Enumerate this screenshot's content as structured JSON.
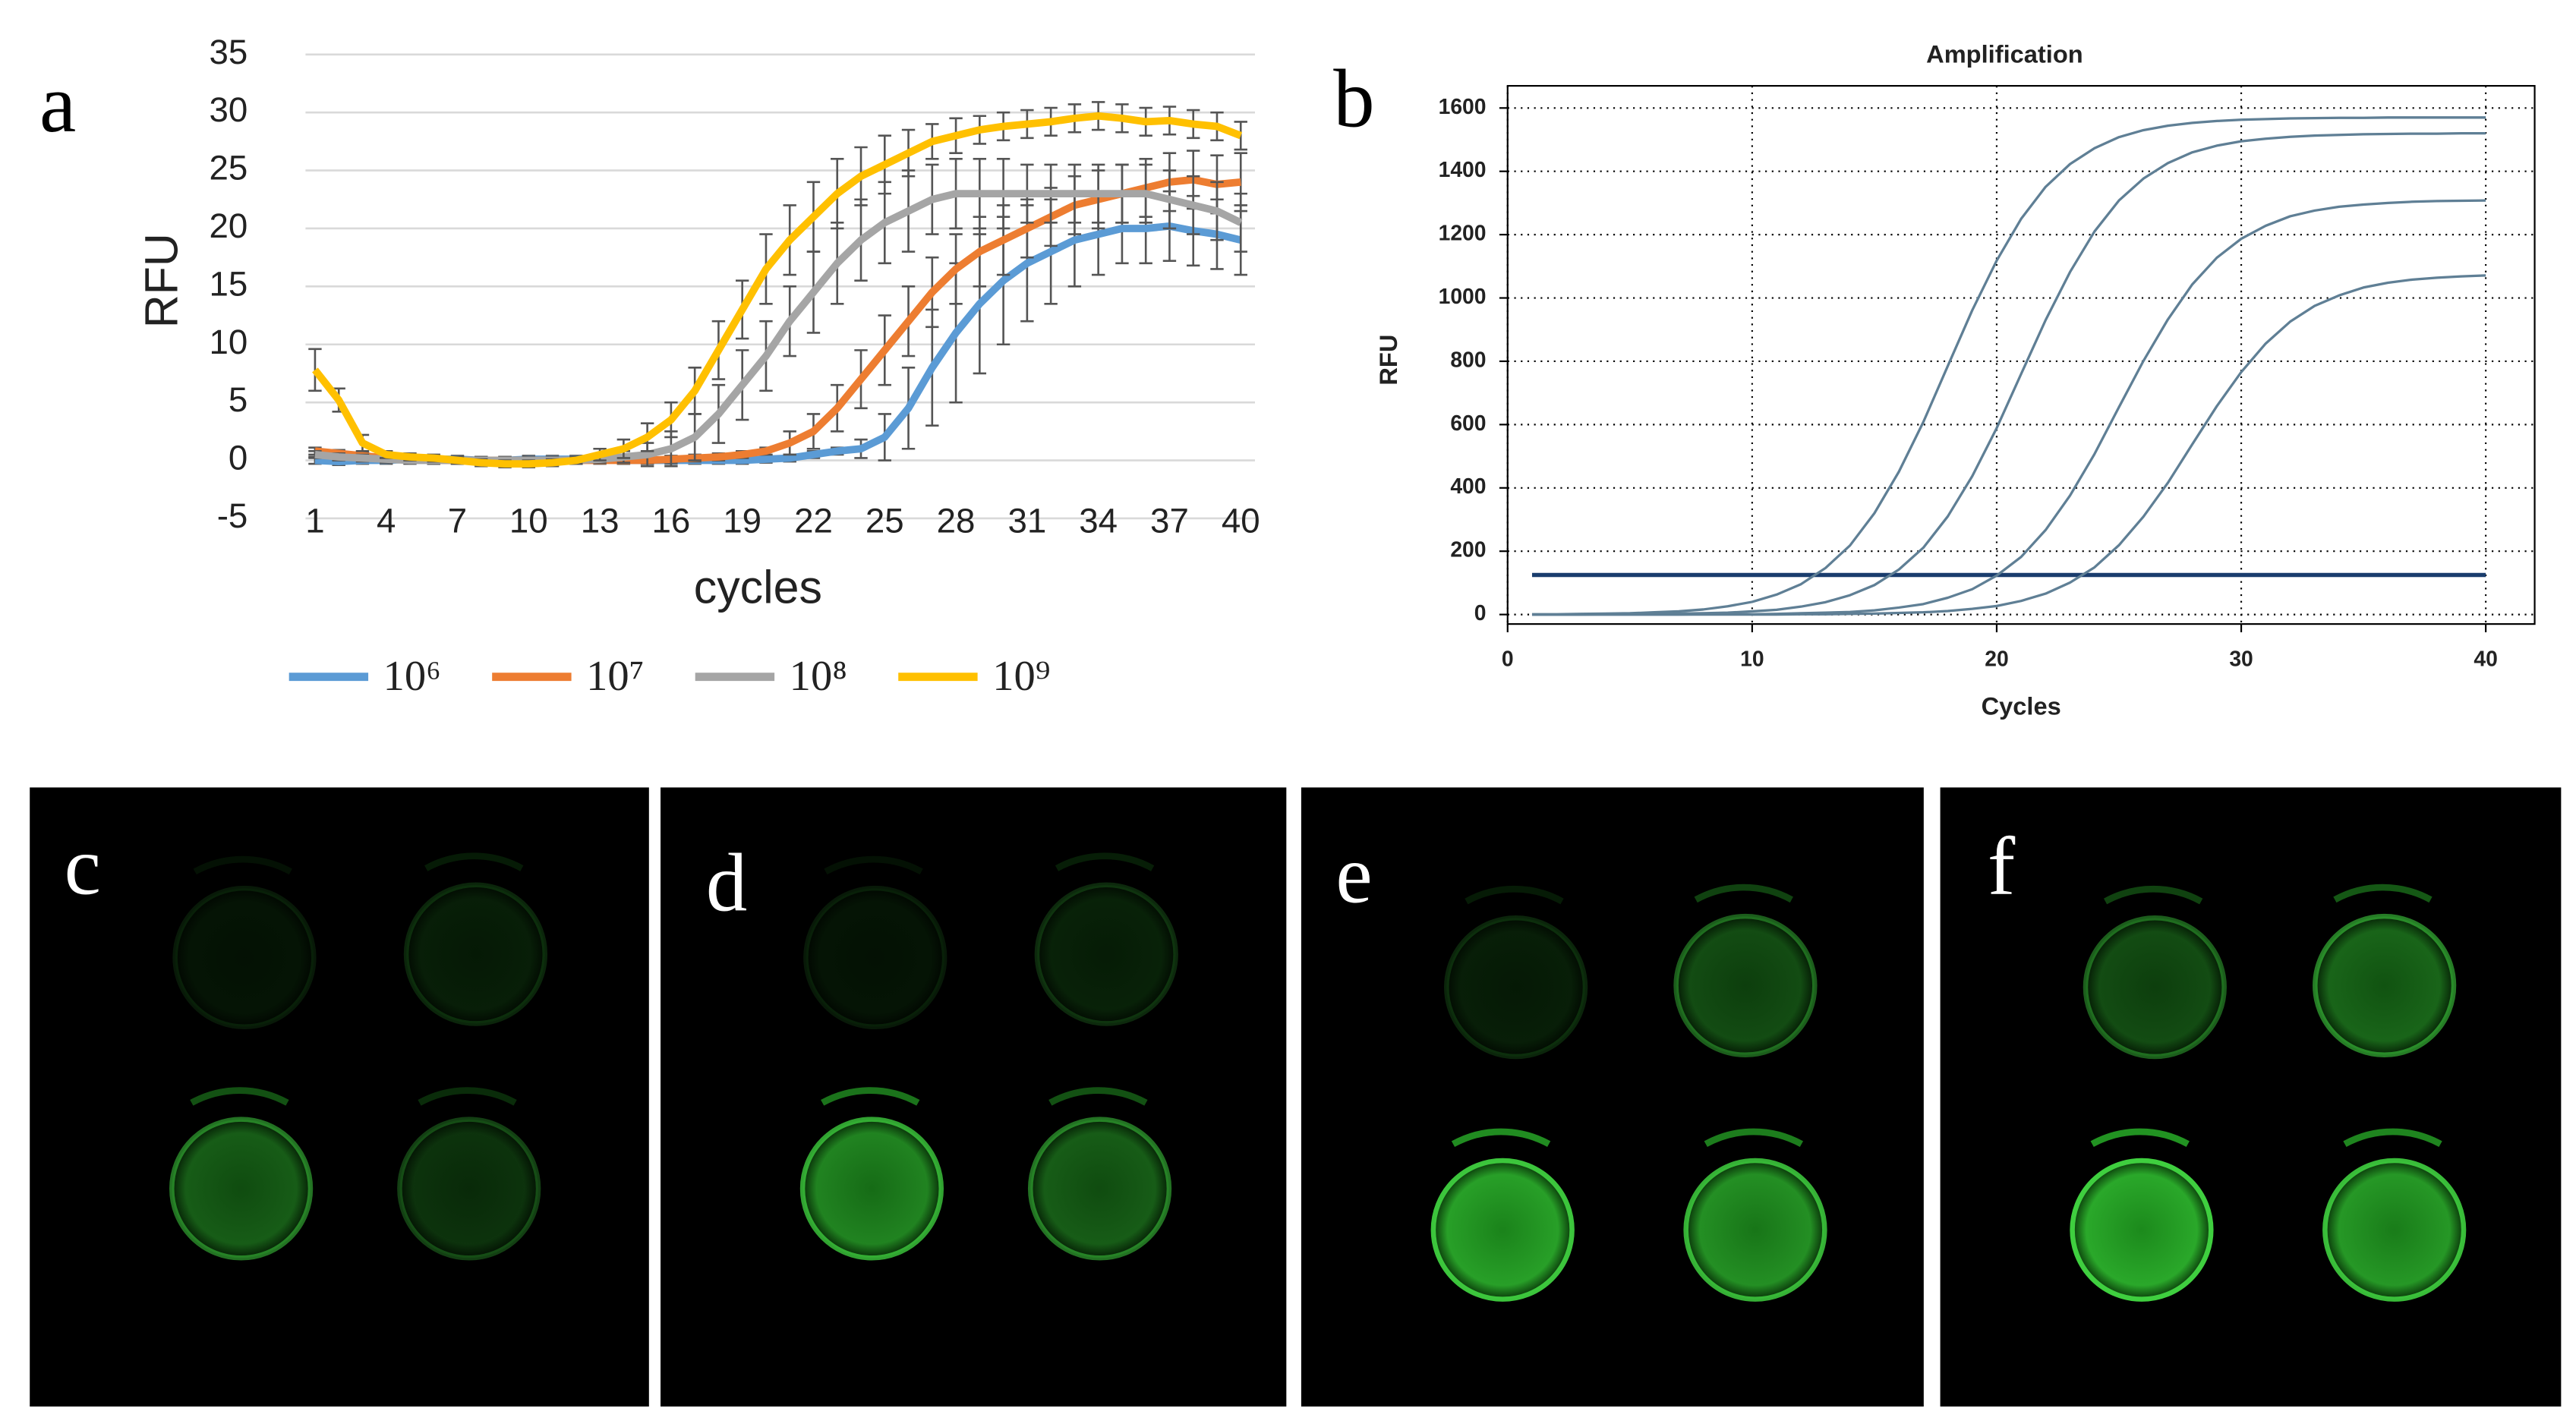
{
  "panel_labels": [
    "a",
    "b",
    "c",
    "d",
    "e",
    "f"
  ],
  "chart_data": [
    {
      "type": "line",
      "x_label": "cycles",
      "y_label": "RFU",
      "x": [
        1,
        2,
        3,
        4,
        5,
        6,
        7,
        8,
        9,
        10,
        11,
        12,
        13,
        14,
        15,
        16,
        17,
        18,
        19,
        20,
        21,
        22,
        23,
        24,
        25,
        26,
        27,
        28,
        29,
        30,
        31,
        32,
        33,
        34,
        35,
        36,
        37,
        38,
        39,
        40
      ],
      "xlim": [
        0.6,
        40.6
      ],
      "xticks": [
        1,
        4,
        7,
        10,
        13,
        16,
        19,
        22,
        25,
        28,
        31,
        34,
        37,
        40
      ],
      "ylim": [
        -5,
        35
      ],
      "yticks": [
        -5,
        0,
        5,
        10,
        15,
        20,
        25,
        30,
        35
      ],
      "grid": "horizontal",
      "legend": "bottom",
      "series": [
        {
          "name": "10⁶",
          "color": "#5b9bd5",
          "values": [
            0,
            -0.1,
            0,
            0,
            0.1,
            0.1,
            0.1,
            0,
            0,
            0.1,
            0.1,
            0.1,
            0.1,
            0,
            0,
            0,
            0,
            0,
            0,
            0.1,
            0.2,
            0.5,
            0.8,
            1,
            2,
            4.5,
            8,
            11,
            13.5,
            15.5,
            17,
            18,
            19,
            19.5,
            20,
            20,
            20.2,
            19.8,
            19.5,
            19
          ],
          "errors": [
            0.3,
            0.3,
            0.3,
            0.3,
            0.3,
            0.3,
            0.3,
            0.3,
            0.3,
            0.3,
            0.3,
            0.3,
            0.3,
            0.3,
            0.3,
            0.3,
            0.3,
            0.3,
            0.3,
            0.3,
            0.3,
            0.3,
            0.3,
            0.8,
            2,
            3.5,
            5,
            6,
            6,
            5.5,
            5,
            4.5,
            4,
            3.5,
            3,
            3,
            3,
            3,
            3,
            3
          ]
        },
        {
          "name": "10⁷",
          "color": "#ed7d31",
          "values": [
            0.8,
            0.6,
            0.4,
            0.2,
            0.1,
            0,
            0,
            0,
            0,
            0,
            0,
            0,
            0,
            0,
            0,
            0.1,
            0.2,
            0.3,
            0.5,
            0.8,
            1.5,
            2.5,
            4.5,
            7,
            9.5,
            12,
            14.5,
            16.5,
            18,
            19,
            20,
            21,
            22,
            22.5,
            23,
            23.5,
            24,
            24.2,
            23.8,
            24
          ],
          "errors": [
            0.3,
            0.3,
            0.3,
            0.3,
            0.3,
            0.3,
            0.3,
            0.3,
            0.3,
            0.3,
            0.3,
            0.3,
            0.3,
            0.3,
            0.3,
            0.3,
            0.3,
            0.3,
            0.3,
            0.3,
            1,
            1.5,
            2,
            2.5,
            3,
            3,
            3,
            3,
            3,
            3,
            2.5,
            2.5,
            2.5,
            2.5,
            2.5,
            2.5,
            2.5,
            2.5,
            2.5,
            2.5
          ]
        },
        {
          "name": "10⁸",
          "color": "#a5a5a5",
          "values": [
            0.5,
            0.3,
            0.2,
            0.1,
            0,
            0,
            0,
            0,
            0,
            0,
            0,
            0,
            0.1,
            0.3,
            0.5,
            1,
            2,
            4,
            6.5,
            9,
            12,
            14.5,
            17,
            19,
            20.5,
            21.5,
            22.5,
            23,
            23,
            23,
            23,
            23,
            23,
            23,
            23,
            23,
            22.5,
            22,
            21.5,
            20.5
          ],
          "errors": [
            0.3,
            0.3,
            0.3,
            0.3,
            0.3,
            0.3,
            0.3,
            0.3,
            0.3,
            0.3,
            0.3,
            0.3,
            0.3,
            0.5,
            1,
            1.5,
            2,
            2.5,
            3,
            3,
            3,
            3.5,
            3.5,
            3.5,
            3.5,
            3.5,
            3,
            3,
            3,
            3,
            2.5,
            2.5,
            2.5,
            2.5,
            2.5,
            2.5,
            2.5,
            2.5,
            2.5,
            2.5
          ]
        },
        {
          "name": "10⁹",
          "color": "#ffc000",
          "values": [
            7.8,
            5.2,
            1.5,
            0.5,
            0.3,
            0.2,
            0,
            -0.2,
            -0.3,
            -0.3,
            -0.2,
            0,
            0.5,
            1,
            2,
            3.5,
            6,
            9.5,
            13,
            16.5,
            19,
            21,
            23,
            24.5,
            25.5,
            26.5,
            27.5,
            28,
            28.5,
            28.8,
            29,
            29.2,
            29.5,
            29.7,
            29.5,
            29.2,
            29.3,
            29,
            28.8,
            28
          ],
          "errors": [
            1.8,
            1,
            0.7,
            0.3,
            0.3,
            0.3,
            0.3,
            0.3,
            0.3,
            0.3,
            0.3,
            0.3,
            0.5,
            0.8,
            1.2,
            1.5,
            2,
            2.5,
            2.5,
            3,
            3,
            3,
            3,
            2.5,
            2.5,
            2,
            1.5,
            1.5,
            1.2,
            1.2,
            1.2,
            1.2,
            1.2,
            1.2,
            1.2,
            1.2,
            1.2,
            1.2,
            1.2,
            1.2
          ]
        }
      ]
    },
    {
      "type": "line",
      "title": "Amplification",
      "x_label": "Cycles",
      "y_label": "RFU",
      "x": [
        1,
        2,
        3,
        4,
        5,
        6,
        7,
        8,
        9,
        10,
        11,
        12,
        13,
        14,
        15,
        16,
        17,
        18,
        19,
        20,
        21,
        22,
        23,
        24,
        25,
        26,
        27,
        28,
        29,
        30,
        31,
        32,
        33,
        34,
        35,
        36,
        37,
        38,
        39,
        40
      ],
      "xlim": [
        0,
        42
      ],
      "xticks": [
        0,
        10,
        20,
        30,
        40
      ],
      "ylim": [
        -30,
        1670
      ],
      "yticks": [
        0,
        200,
        400,
        600,
        800,
        1000,
        1200,
        1400,
        1600
      ],
      "grid": "dotted",
      "threshold": 125,
      "threshold_color": "#1a3d6d",
      "series": [
        {
          "color": "#5f7f95",
          "values": [
            1,
            1,
            2,
            3,
            4,
            7,
            10,
            16,
            26,
            40,
            63,
            96,
            147,
            218,
            320,
            451,
            608,
            785,
            961,
            1118,
            1250,
            1351,
            1423,
            1473,
            1508,
            1530,
            1544,
            1553,
            1559,
            1563,
            1565,
            1567,
            1568,
            1569,
            1569,
            1570,
            1570,
            1570,
            1570,
            1570
          ]
        },
        {
          "color": "#5f7f95",
          "values": [
            0,
            0,
            0,
            1,
            1,
            2,
            3,
            4,
            6,
            10,
            15,
            25,
            39,
            61,
            93,
            142,
            211,
            310,
            437,
            589,
            760,
            930,
            1082,
            1210,
            1308,
            1377,
            1426,
            1460,
            1481,
            1495,
            1503,
            1509,
            1513,
            1515,
            1517,
            1518,
            1519,
            1519,
            1520,
            1520
          ]
        },
        {
          "color": "#5f7f95",
          "values": [
            0,
            0,
            0,
            0,
            0,
            0,
            0,
            1,
            1,
            1,
            2,
            4,
            6,
            8,
            13,
            22,
            33,
            53,
            80,
            123,
            182,
            267,
            376,
            507,
            655,
            801,
            932,
            1043,
            1127,
            1187,
            1228,
            1258,
            1276,
            1288,
            1295,
            1300,
            1304,
            1306,
            1307,
            1308
          ]
        },
        {
          "color": "#5f7f95",
          "values": [
            0,
            0,
            0,
            0,
            0,
            0,
            0,
            0,
            0,
            0,
            0,
            1,
            1,
            2,
            3,
            5,
            7,
            11,
            18,
            27,
            43,
            66,
            101,
            149,
            219,
            309,
            416,
            538,
            658,
            766,
            856,
            925,
            975,
            1008,
            1033,
            1048,
            1058,
            1064,
            1068,
            1071
          ]
        }
      ]
    }
  ]
}
